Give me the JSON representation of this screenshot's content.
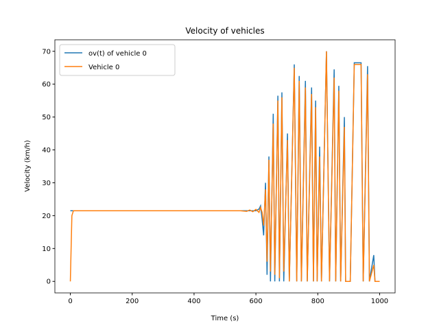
{
  "chart_data": {
    "type": "line",
    "title": "Velocity of vehicles",
    "xlabel": "Time (s)",
    "ylabel": "Velocity (km/h)",
    "x": [
      0,
      5,
      10,
      550,
      570,
      580,
      590,
      600,
      610,
      615,
      620,
      625,
      631,
      636,
      642,
      647,
      656,
      661,
      671,
      676,
      684,
      690,
      702,
      708,
      724,
      732,
      740,
      747,
      760,
      766,
      780,
      786,
      793,
      798,
      806,
      812,
      828,
      838,
      853,
      858,
      868,
      874,
      886,
      890,
      905,
      918,
      940,
      947,
      961,
      967,
      981,
      985,
      1000
    ],
    "series": [
      {
        "name": "ov(t) of vehicle 0",
        "color": "#1f77b4",
        "values": [
          21.5,
          21.5,
          21.5,
          21.5,
          21.5,
          21.5,
          21.5,
          21.5,
          22,
          23,
          19,
          14,
          30,
          2,
          38,
          0,
          51,
          0,
          56.5,
          0,
          57.5,
          0,
          45,
          0,
          66,
          0,
          62.5,
          0,
          61,
          0,
          59,
          0,
          55,
          0,
          41,
          0,
          70,
          0,
          64.5,
          0,
          59.5,
          0,
          50,
          0,
          0,
          66.5,
          66.5,
          0,
          65.5,
          0,
          8,
          0,
          0
        ]
      },
      {
        "name": "Vehicle 0",
        "color": "#ff7f0e",
        "values": [
          0,
          20,
          21.5,
          21.5,
          21.3,
          21.7,
          21.2,
          21.9,
          21,
          22.5,
          21,
          17,
          28,
          6,
          37,
          3,
          48,
          2,
          55,
          1,
          56,
          3,
          43,
          0,
          65,
          0,
          61,
          0,
          59,
          0,
          57,
          0,
          53,
          0,
          38,
          0,
          70,
          0,
          62,
          0,
          58,
          0,
          47,
          0,
          0,
          66,
          66,
          0,
          63,
          0,
          5,
          0,
          0
        ]
      }
    ],
    "xlim": [
      -50,
      1050
    ],
    "ylim": [
      -3.5,
      73.5
    ],
    "xticks": [
      0,
      200,
      400,
      600,
      800,
      1000
    ],
    "yticks": [
      0,
      10,
      20,
      30,
      40,
      50,
      60,
      70
    ],
    "legend": "upper left"
  }
}
